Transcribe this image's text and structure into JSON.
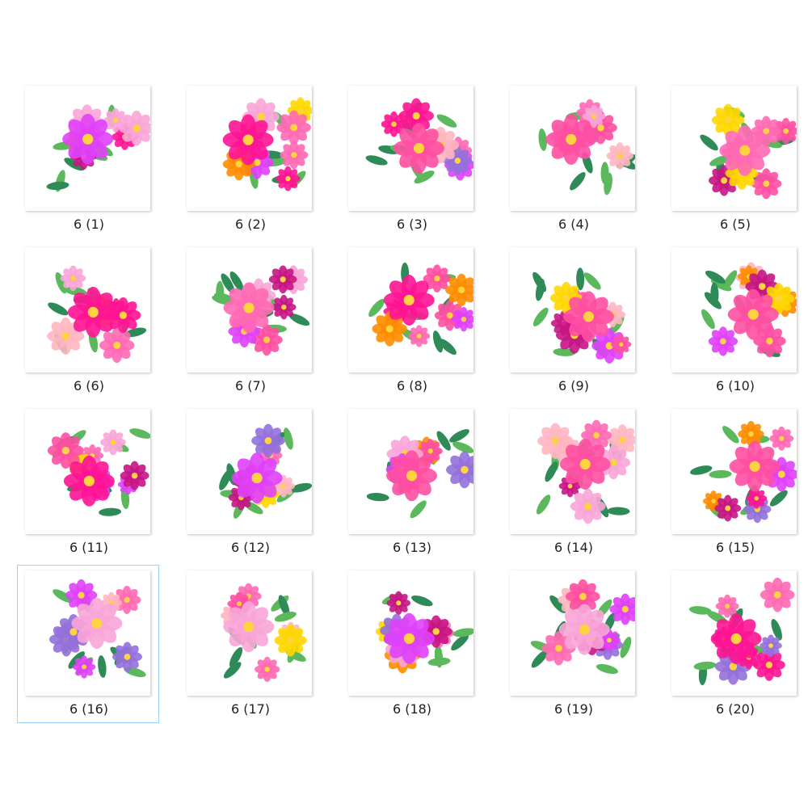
{
  "items": [
    {
      "label": "6 (1)"
    },
    {
      "label": "6 (2)"
    },
    {
      "label": "6 (3)"
    },
    {
      "label": "6 (4)"
    },
    {
      "label": "6 (5)"
    },
    {
      "label": "6 (6)"
    },
    {
      "label": "6 (7)"
    },
    {
      "label": "6 (8)"
    },
    {
      "label": "6 (9)"
    },
    {
      "label": "6 (10)"
    },
    {
      "label": "6 (11)"
    },
    {
      "label": "6 (12)"
    },
    {
      "label": "6 (13)"
    },
    {
      "label": "6 (14)"
    },
    {
      "label": "6 (15)"
    },
    {
      "label": "6 (16)",
      "selected": true
    },
    {
      "label": "6 (17)"
    },
    {
      "label": "6 (18)"
    },
    {
      "label": "6 (19)"
    },
    {
      "label": "6 (20)"
    }
  ]
}
